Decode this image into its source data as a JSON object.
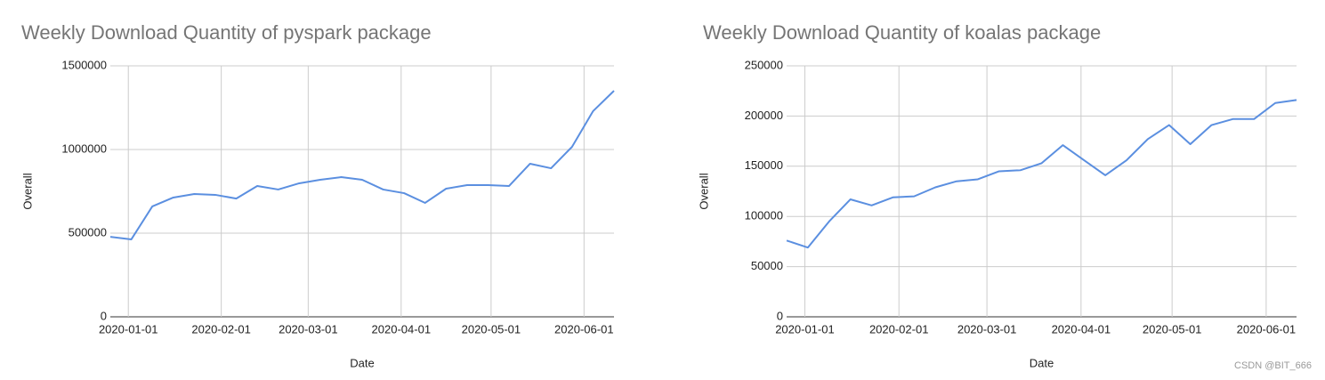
{
  "chart_data": [
    {
      "type": "line",
      "title": "Weekly Download Quantity of pyspark package",
      "x_label": "Date",
      "y_label": "Overall",
      "x": [
        "2019-12-26",
        "2020-01-02",
        "2020-01-09",
        "2020-01-16",
        "2020-01-23",
        "2020-01-30",
        "2020-02-06",
        "2020-02-13",
        "2020-02-20",
        "2020-02-27",
        "2020-03-05",
        "2020-03-12",
        "2020-03-19",
        "2020-03-26",
        "2020-04-02",
        "2020-04-09",
        "2020-04-16",
        "2020-04-23",
        "2020-04-30",
        "2020-05-07",
        "2020-05-14",
        "2020-05-21",
        "2020-05-28",
        "2020-06-04",
        "2020-06-11"
      ],
      "series": [
        {
          "name": "Overall",
          "color": "#5b8fe0",
          "values": [
            478000,
            463000,
            660000,
            713000,
            734000,
            729000,
            707000,
            782000,
            761000,
            798000,
            819000,
            835000,
            819000,
            761000,
            739000,
            681000,
            766000,
            787000,
            787000,
            782000,
            915000,
            888000,
            1016000,
            1229000,
            1351000
          ]
        }
      ],
      "xlim": [
        "2019-12-26",
        "2020-06-11"
      ],
      "xticks": [
        "2020-01-01",
        "2020-02-01",
        "2020-03-01",
        "2020-04-01",
        "2020-05-01",
        "2020-06-01"
      ],
      "ylim": [
        0,
        1500000
      ],
      "yticks": [
        0,
        500000,
        1000000,
        1500000
      ],
      "grid": true
    },
    {
      "type": "line",
      "title": "Weekly Download Quantity of koalas package",
      "x_label": "Date",
      "y_label": "Overall",
      "x": [
        "2019-12-26",
        "2020-01-02",
        "2020-01-09",
        "2020-01-16",
        "2020-01-23",
        "2020-01-30",
        "2020-02-06",
        "2020-02-13",
        "2020-02-20",
        "2020-02-27",
        "2020-03-05",
        "2020-03-12",
        "2020-03-19",
        "2020-03-26",
        "2020-04-02",
        "2020-04-09",
        "2020-04-16",
        "2020-04-23",
        "2020-04-30",
        "2020-05-07",
        "2020-05-14",
        "2020-05-21",
        "2020-05-28",
        "2020-06-04",
        "2020-06-11"
      ],
      "series": [
        {
          "name": "Overall",
          "color": "#5b8fe0",
          "values": [
            76000,
            69000,
            95000,
            117000,
            111000,
            119000,
            120000,
            129000,
            135000,
            137000,
            145000,
            146000,
            153000,
            171000,
            156000,
            141000,
            156000,
            177000,
            191000,
            172000,
            191000,
            197000,
            197000,
            213000,
            216000
          ]
        }
      ],
      "xlim": [
        "2019-12-26",
        "2020-06-11"
      ],
      "xticks": [
        "2020-01-01",
        "2020-02-01",
        "2020-03-01",
        "2020-04-01",
        "2020-05-01",
        "2020-06-01"
      ],
      "ylim": [
        0,
        250000
      ],
      "yticks": [
        0,
        50000,
        100000,
        150000,
        200000,
        250000
      ],
      "grid": true
    }
  ],
  "watermark": "CSDN @BIT_666"
}
